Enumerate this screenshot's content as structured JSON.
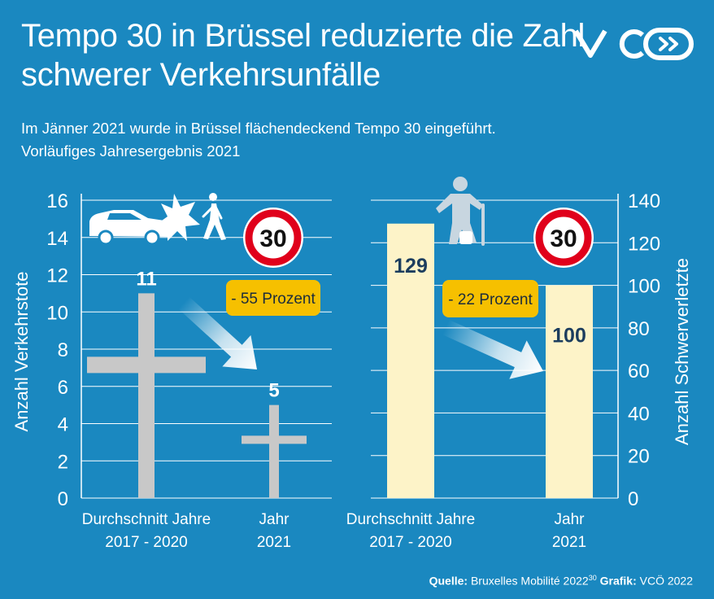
{
  "title": {
    "line1": "Tempo 30 in Brüssel reduzierte die Zahl",
    "line2": "schwerer Verkehrsunfälle"
  },
  "subtitle": {
    "line1": "Im Jänner 2021 wurde in Brüssel flächendeckend Tempo 30 eingeführt.",
    "line2": "Vorläufiges Jahresergebnis 2021"
  },
  "logo": {
    "text": "VCÖ",
    "icon": "vco-logo"
  },
  "sign_label": "30",
  "source": {
    "label1": "Quelle:",
    "text1": "Bruxelles Mobilité 2022",
    "sup": "30",
    "label2": "Grafik:",
    "text2": "VCÖ 2022"
  },
  "colors": {
    "background": "#1a88c0",
    "cross": "#c8c8c8",
    "bar": "#fdf3c8",
    "badge": "#f6c000",
    "sign_ring": "#e0001b",
    "value_text": "#1c3d5e"
  },
  "chart_data": [
    {
      "type": "bar",
      "categories": [
        [
          "Durchschnitt Jahre",
          "2017 - 2020"
        ],
        [
          "Jahr",
          "2021"
        ]
      ],
      "values": [
        11,
        5
      ],
      "value_labels": [
        "11",
        "5"
      ],
      "ylabel": "Anzahl Verkehrstote",
      "ylim": [
        0,
        16
      ],
      "yticks": [
        0,
        2,
        4,
        6,
        8,
        10,
        12,
        14,
        16
      ],
      "grid": true,
      "marker": "cross",
      "icons": [
        "car-icon",
        "crash-icon",
        "pedestrian-icon",
        "speed-sign-30-icon"
      ],
      "annotation": "- 55 Prozent"
    },
    {
      "type": "bar",
      "categories": [
        [
          "Durchschnitt Jahre",
          "2017 - 2020"
        ],
        [
          "Jahr",
          "2021"
        ]
      ],
      "values": [
        129,
        100
      ],
      "value_labels": [
        "129",
        "100"
      ],
      "ylabel": "Anzahl Schwerverletzte",
      "ylim": [
        0,
        140
      ],
      "yticks": [
        0,
        20,
        40,
        60,
        80,
        100,
        120,
        140
      ],
      "grid": true,
      "icons": [
        "injured-person-icon",
        "speed-sign-30-icon"
      ],
      "annotation": "- 22 Prozent"
    }
  ]
}
